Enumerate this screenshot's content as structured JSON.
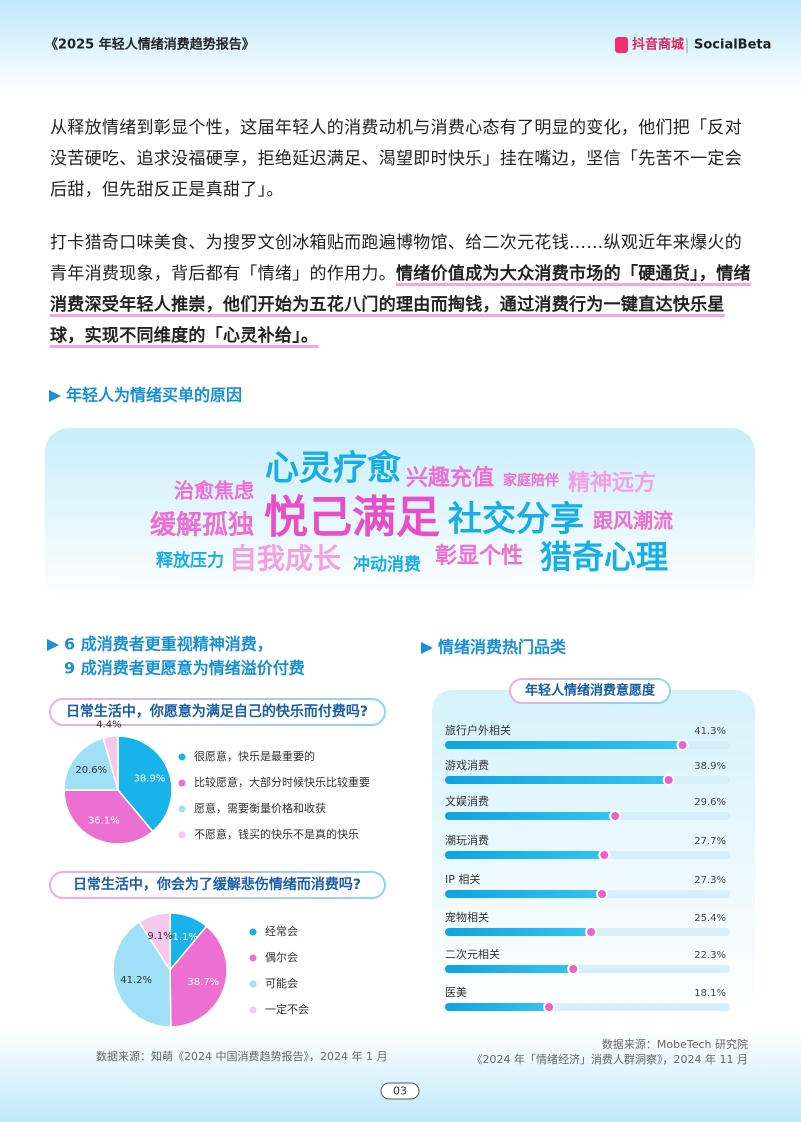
{
  "header": {
    "title": "《2025 年轻人情绪消费趋势报告》",
    "brand": "抖音商城",
    "partner": "SocialBeta"
  },
  "paragraphs": [
    "从释放情绪到彰显个性，这届年轻人的消费动机与消费心态有了明显的变化，他们把「反对没苦硬吃、追求没福硬享，拒绝延迟满足、渴望即时快乐」挂在嘴边，坚信「先苦不一定会后甜，但先甜反正是真甜了」。",
    "打卡猎奇口味美食、为搜罗文创冰箱贴而跑遍博物馆、给二次元花钱……纵观近年来爆火的青年消费现象，背后都有「情绪」的作用力。"
  ],
  "highlight": "情绪价值成为大众消费市场的「硬通货」，情绪消费深受年轻人推崇，他们开始为五花八门的理由而掏钱，通过消费行为一键直达快乐星球，实现不同维度的「心灵补给」。",
  "sections": {
    "reasons": "年轻人为情绪买单的原因",
    "left": [
      "6 成消费者更重视精神消费，",
      "9 成消费者更愿意为情绪溢价付费"
    ],
    "right": "情绪消费热门品类"
  },
  "word_cloud": [
    "心灵疗愈",
    "兴趣充值",
    "家庭陪伴",
    "精神远方",
    "治愈焦虑",
    "缓解孤独",
    "悦己满足",
    "社交分享",
    "跟风潮流",
    "释放压力",
    "自我成长",
    "冲动消费",
    "彰显个性",
    "猎奇心理"
  ],
  "sources": {
    "left": "数据来源：知萌《2024 中国消费趋势报告》，2024 年 1 月",
    "right": [
      "数据来源：MobeTech 研究院",
      "《2024 年「情绪经济」消费人群洞察》，2024 年 11 月"
    ]
  },
  "page_number": "03",
  "chart_data": [
    {
      "type": "pie",
      "title": "日常生活中，你愿意为满足自己的快乐而付费吗?",
      "categories": [
        "很愿意，快乐是最重要的",
        "比较愿意，大部分时候快乐比较重要",
        "愿意，需要衡量价格和收获",
        "不愿意，钱买的快乐不是真的快乐"
      ],
      "values": [
        38.9,
        36.1,
        20.6,
        4.4
      ],
      "value_labels": [
        "38.9%",
        "36.1%",
        "20.6%",
        "4.4%"
      ],
      "colors": [
        "#17b3ea",
        "#ee6fd2",
        "#9fe0f6",
        "#f8c7ee"
      ]
    },
    {
      "type": "pie",
      "title": "日常生活中，你会为了缓解悲伤情绪而消费吗?",
      "categories": [
        "经常会",
        "偶尔会",
        "可能会",
        "一定不会"
      ],
      "values": [
        11.1,
        38.7,
        41.2,
        9.1
      ],
      "value_labels": [
        "11.1%",
        "38.7%",
        "41.2%",
        "9.1%"
      ],
      "colors": [
        "#17b3ea",
        "#ee6fd2",
        "#9fe0f6",
        "#f8c7ee"
      ]
    },
    {
      "type": "bar",
      "title": "年轻人情绪消费意愿度",
      "categories": [
        "旅行户外相关",
        "游戏消费",
        "文娱消费",
        "潮玩消费",
        "IP 相关",
        "宠物相关",
        "二次元相关",
        "医美"
      ],
      "values": [
        41.3,
        38.9,
        29.6,
        27.7,
        27.3,
        25.4,
        22.3,
        18.1
      ],
      "value_labels": [
        "41.3%",
        "38.9%",
        "29.6%",
        "27.7%",
        "27.3%",
        "25.4%",
        "22.3%",
        "18.1%"
      ],
      "color": "#17b3ea"
    }
  ]
}
